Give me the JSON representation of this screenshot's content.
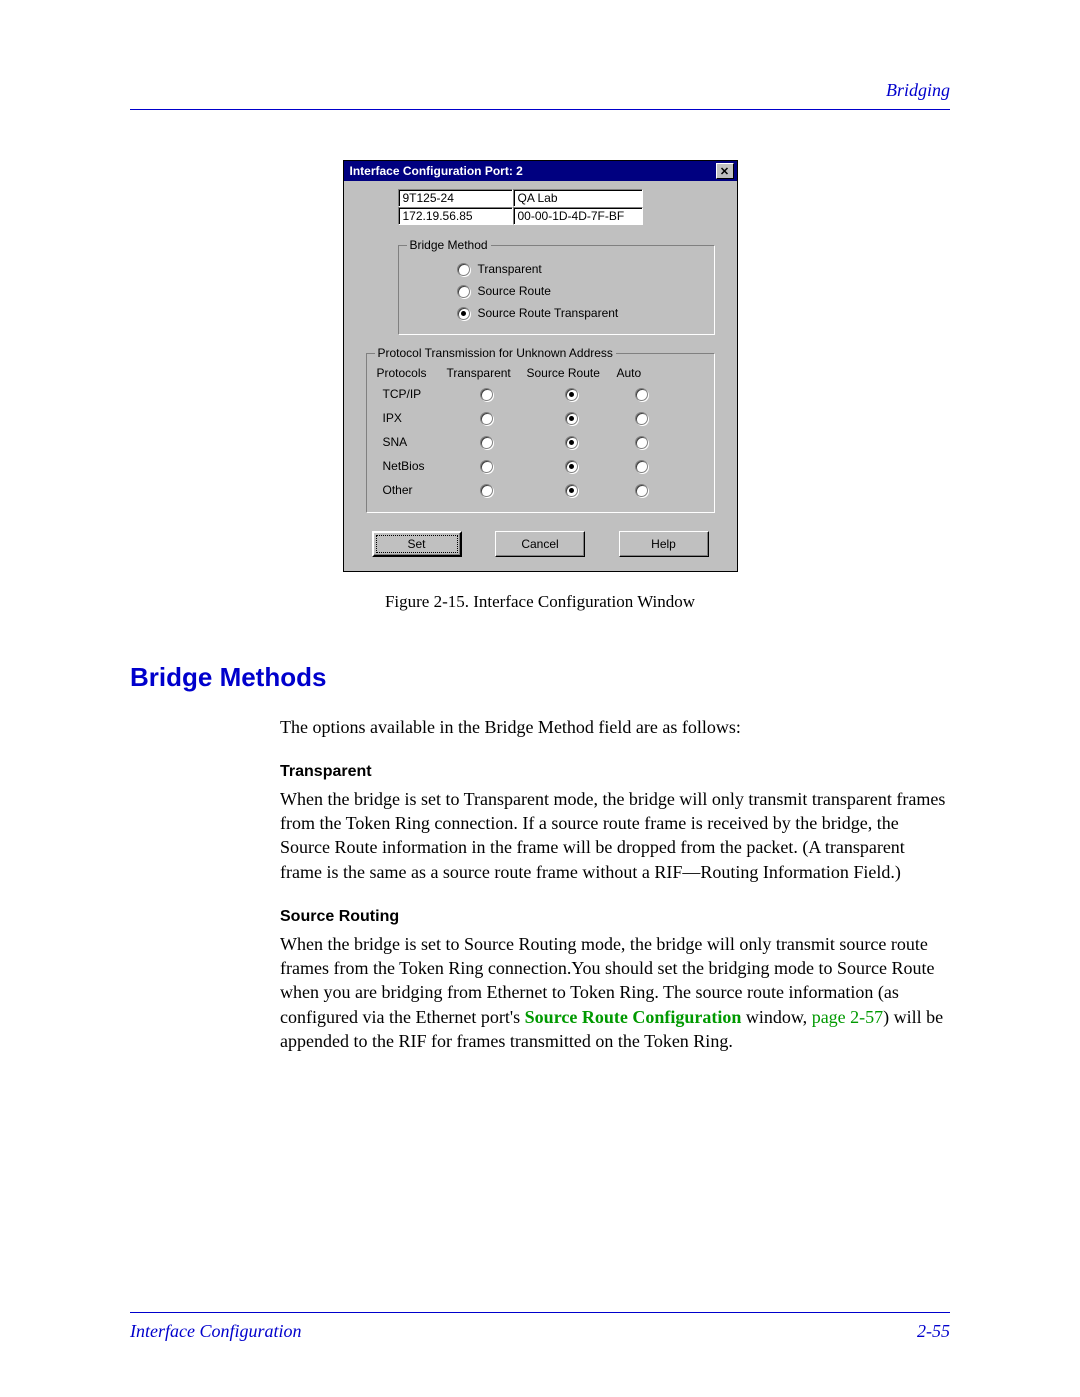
{
  "header": {
    "section": "Bridging"
  },
  "dialog": {
    "title": "Interface Configuration Port: 2",
    "info": {
      "device": "9T125-24",
      "name": "QA Lab",
      "ip": "172.19.56.85",
      "mac": "00-00-1D-4D-7F-BF"
    },
    "bridge_method": {
      "legend": "Bridge Method",
      "options": [
        "Transparent",
        "Source Route",
        "Source Route Transparent"
      ],
      "selected": 2
    },
    "proto": {
      "legend": "Protocol Transmission for Unknown Address",
      "headers": [
        "Protocols",
        "Transparent",
        "Source Route",
        "Auto"
      ],
      "rows": [
        {
          "label": "TCP/IP",
          "sel": 1
        },
        {
          "label": "IPX",
          "sel": 1
        },
        {
          "label": "SNA",
          "sel": 1
        },
        {
          "label": "NetBios",
          "sel": 1
        },
        {
          "label": "Other",
          "sel": 1
        }
      ]
    },
    "buttons": {
      "set": "Set",
      "cancel": "Cancel",
      "help": "Help"
    }
  },
  "caption": "Figure 2-15. Interface Configuration Window",
  "h2": "Bridge Methods",
  "intro": "The options available in the Bridge Method field are as follows:",
  "transparent": {
    "title": "Transparent",
    "body": "When the bridge is set to Transparent mode, the bridge will only transmit transparent frames from the Token Ring connection. If a source route frame is received by the bridge, the Source Route information in the frame will be dropped from the packet. (A transparent frame is the same as a source route frame without a RIF—Routing Information Field.)"
  },
  "source_routing": {
    "title": "Source Routing",
    "body1": "When the bridge is set to Source Routing mode, the bridge will only transmit source route frames from the Token Ring connection.You should set the bridging mode to Source Route when you are bridging from Ethernet to Token Ring. The source route information (as configured via the Ethernet port's ",
    "link": "Source Route Configuration",
    "body2": " window, ",
    "pageref": "page 2-57",
    "body3": ") will be appended to the RIF for frames transmitted on the Token Ring."
  },
  "footer": {
    "left": "Interface Configuration",
    "right": "2-55"
  }
}
